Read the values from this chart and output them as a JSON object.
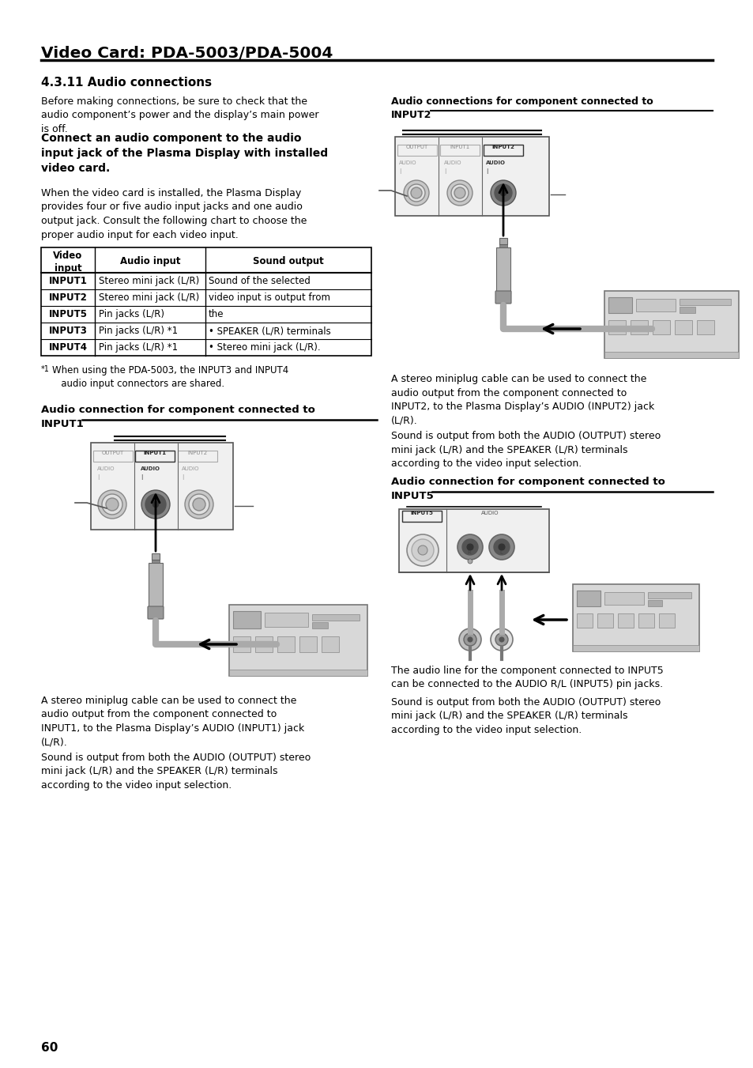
{
  "page_bg": "#ffffff",
  "header_title": "Video Card: PDA-5003/PDA-5004",
  "section_title": "4.3.11 Audio connections",
  "intro_text": "Before making connections, be sure to check that the\naudio component’s power and the display’s main power\nis off.",
  "bold_heading": "Connect an audio component to the audio\ninput jack of the Plasma Display with installed\nvideo card.",
  "body_text": "When the video card is installed, the Plasma Display\nprovides four or five audio input jacks and one audio\noutput jack. Consult the following chart to choose the\nproper audio input for each video input.",
  "footnote_superscript": "*1",
  "footnote_text": "   When using the PDA-5003, the INPUT3 and INPUT4\n   audio input connectors are shared.",
  "left_conn_title1": "Audio connection for component connected to",
  "left_conn_title2": "INPUT1",
  "left_caption1": "A stereo miniplug cable can be used to connect the\naudio output from the component connected to\nINPUT1, to the Plasma Display’s AUDIO (INPUT1) jack\n(L/R).",
  "left_caption2": "Sound is output from both the AUDIO (OUTPUT) stereo\nmini jack (L/R) and the SPEAKER (L/R) terminals\naccording to the video input selection.",
  "right_conn_title1": "Audio connections for component connected to",
  "right_conn_title2": "INPUT2",
  "right_caption1": "A stereo miniplug cable can be used to connect the\naudio output from the component connected to\nINPUT2, to the Plasma Display’s AUDIO (INPUT2) jack\n(L/R).",
  "right_caption2": "Sound is output from both the AUDIO (OUTPUT) stereo\nmini jack (L/R) and the SPEAKER (L/R) terminals\naccording to the video input selection.",
  "right2_conn_title1": "Audio connection for component connected to",
  "right2_conn_title2": "INPUT5",
  "right2_caption1": "The audio line for the component connected to INPUT5\ncan be connected to the AUDIO R/L (INPUT5) pin jacks.",
  "right2_caption2": "Sound is output from both the AUDIO (OUTPUT) stereo\nmini jack (L/R) and the SPEAKER (L/R) terminals\naccording to the video input selection.",
  "page_number": "60",
  "table_col1_header": "Video\ninput",
  "table_col2_header": "Audio input",
  "table_col3_header": "Sound output",
  "table_rows": [
    [
      "INPUT1",
      "Stereo mini jack (L/R)",
      "Sound of the selected"
    ],
    [
      "INPUT2",
      "Stereo mini jack (L/R)",
      "video input is output from"
    ],
    [
      "INPUT5",
      "Pin jacks (L/R)",
      "the"
    ],
    [
      "INPUT3",
      "Pin jacks (L/R) *1",
      "• SPEAKER (L/R) terminals"
    ],
    [
      "INPUT4",
      "Pin jacks (L/R) *1",
      "• Stereo mini jack (L/R)."
    ]
  ],
  "gray_panel": "#d0d0d0",
  "gray_dark": "#888888",
  "gray_med": "#aaaaaa",
  "gray_light": "#cccccc",
  "border_color": "#444444"
}
